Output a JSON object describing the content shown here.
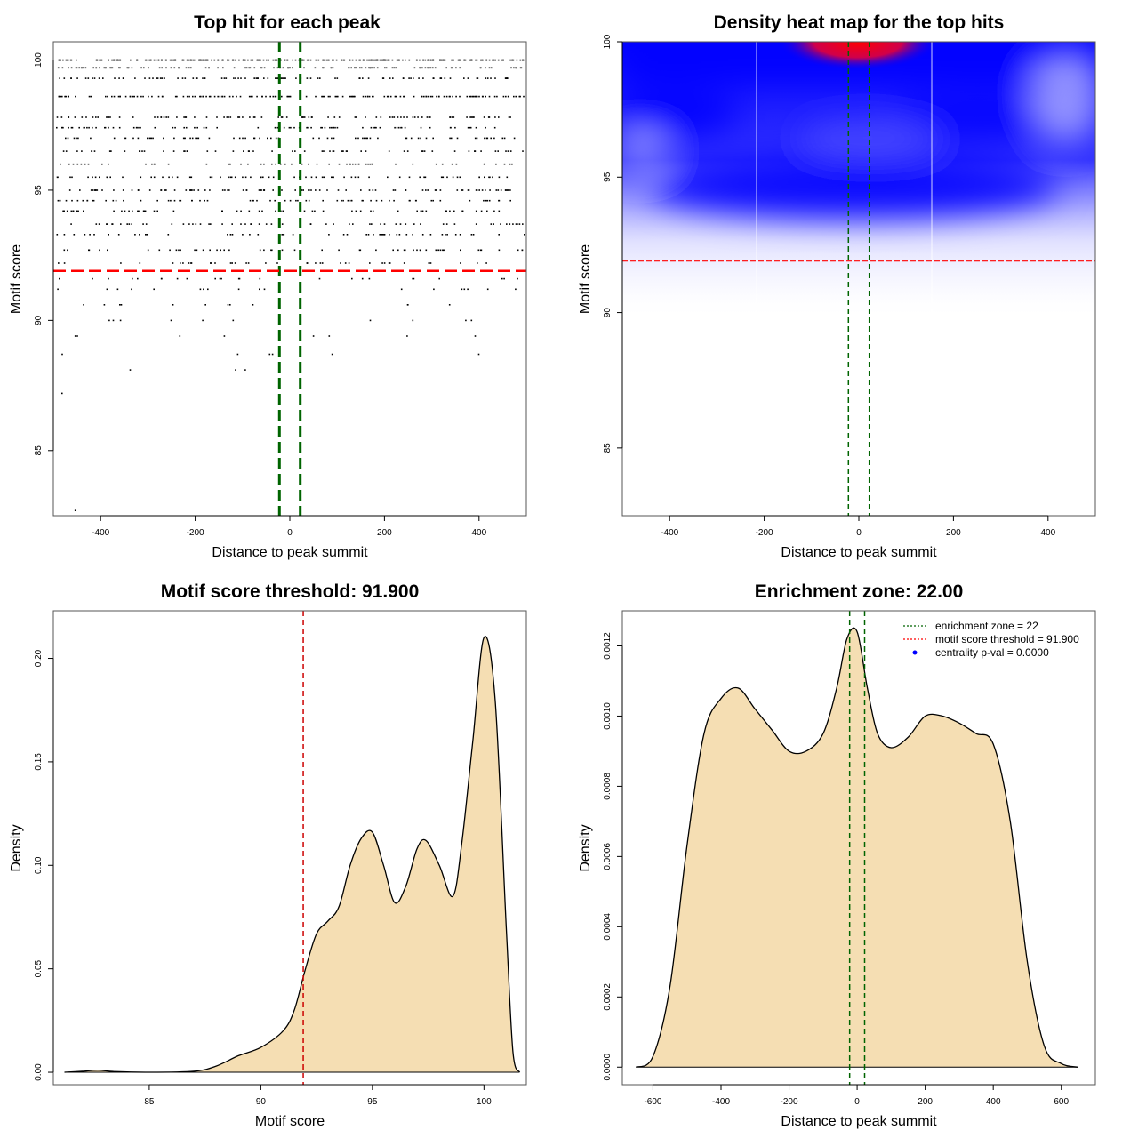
{
  "chart_data": [
    {
      "id": "scatter",
      "type": "scatter",
      "title": "Top hit for each peak",
      "xlabel": "Distance to peak summit",
      "ylabel": "Motif score",
      "xlim": [
        -500,
        500
      ],
      "ylim": [
        82.5,
        100.7
      ],
      "xticks": [
        "-400",
        "-200",
        "0",
        "200",
        "400"
      ],
      "yticks": [
        "85",
        "90",
        "95",
        "100"
      ],
      "points_description_counts": {
        "score_levels": [
          100,
          99.7,
          99.3,
          98.6,
          97.8,
          97.4,
          97.0,
          96.5,
          96.0,
          95.5,
          95.0,
          94.6,
          94.2,
          93.7,
          93.3,
          92.7,
          92.2,
          91.6,
          91.2,
          90.6,
          90.0,
          89.4,
          88.7,
          88.1,
          87.2,
          82.7
        ],
        "approx_points_per_level": [
          260,
          120,
          100,
          150,
          90,
          80,
          70,
          60,
          55,
          75,
          90,
          70,
          65,
          60,
          50,
          55,
          40,
          25,
          18,
          12,
          10,
          8,
          6,
          3,
          1,
          1
        ]
      },
      "vlines": [
        -22,
        22
      ],
      "vline_color": "#006400",
      "hline": 91.9,
      "hline_color": "#ff0000"
    },
    {
      "id": "heatmap",
      "type": "heatmap",
      "title": "Density heat map for the top hits",
      "xlabel": "Distance to peak summit",
      "ylabel": "Motif score",
      "xlim": [
        -500,
        500
      ],
      "ylim": [
        82.5,
        100
      ],
      "xticks": [
        "-400",
        "-200",
        "0",
        "200",
        "400"
      ],
      "yticks": [
        "85",
        "90",
        "95",
        "100"
      ],
      "hotspot": {
        "x": 0,
        "y": 100
      },
      "vlines": [
        -22,
        22
      ],
      "hline": 91.9
    },
    {
      "id": "score-density",
      "type": "area",
      "title": "Motif score threshold: 91.900",
      "xlabel": "Motif score",
      "ylabel": "Density",
      "xlim": [
        80.7,
        101.9
      ],
      "ylim": [
        -0.006,
        0.223
      ],
      "xticks": [
        "85",
        "90",
        "95",
        "100"
      ],
      "yticks": [
        "0.00",
        "0.05",
        "0.10",
        "0.15",
        "0.20"
      ],
      "x": [
        81.2,
        82.0,
        82.7,
        83.5,
        85,
        87,
        88,
        89,
        90,
        91,
        91.5,
        92,
        92.5,
        93,
        93.5,
        94,
        94.5,
        95,
        95.5,
        96,
        96.5,
        97,
        97.4,
        98,
        98.6,
        99,
        99.5,
        100,
        100.5,
        101,
        101.3,
        101.6
      ],
      "y": [
        0.0,
        0.0005,
        0.001,
        0.0003,
        0.0,
        0.0005,
        0.003,
        0.008,
        0.012,
        0.02,
        0.03,
        0.05,
        0.067,
        0.073,
        0.08,
        0.1,
        0.113,
        0.116,
        0.1,
        0.082,
        0.09,
        0.108,
        0.112,
        0.1,
        0.085,
        0.11,
        0.16,
        0.21,
        0.18,
        0.07,
        0.01,
        0.0
      ],
      "vline": 91.9,
      "fill": "#f5deb3"
    },
    {
      "id": "distance-density",
      "type": "area",
      "title": "Enrichment zone: 22.00",
      "xlabel": "Distance to peak summit",
      "ylabel": "Density",
      "xlim": [
        -690,
        700
      ],
      "ylim": [
        -5e-05,
        0.0013
      ],
      "xticks": [
        "-600",
        "-400",
        "-200",
        "0",
        "200",
        "400",
        "600"
      ],
      "yticks": [
        "0.0000",
        "0.0002",
        "0.0004",
        "0.0006",
        "0.0008",
        "0.0010",
        "0.0012"
      ],
      "x": [
        -650,
        -600,
        -550,
        -500,
        -450,
        -400,
        -350,
        -300,
        -250,
        -200,
        -150,
        -100,
        -60,
        -30,
        0,
        30,
        60,
        100,
        150,
        200,
        250,
        300,
        350,
        400,
        450,
        500,
        550,
        600,
        650
      ],
      "y": [
        0.0,
        3e-05,
        0.00023,
        0.00063,
        0.00095,
        0.00105,
        0.00108,
        0.00102,
        0.00096,
        0.0009,
        0.0009,
        0.00095,
        0.00108,
        0.00122,
        0.00124,
        0.00108,
        0.00095,
        0.00091,
        0.00094,
        0.001,
        0.001,
        0.00098,
        0.00095,
        0.00092,
        0.0007,
        0.0003,
        6e-05,
        1e-05,
        0.0
      ],
      "vlines": [
        -22,
        22
      ],
      "fill": "#f5deb3",
      "legend": [
        {
          "label": "enrichment zone = 22",
          "color": "#006400",
          "style": "dotted-line"
        },
        {
          "label": "motif score threshold = 91.900",
          "color": "#ff0000",
          "style": "dotted-line"
        },
        {
          "label": "centrality p-val = 0.0000",
          "color": "#0000ff",
          "style": "point"
        }
      ],
      "legend_placement": "top-right"
    }
  ]
}
